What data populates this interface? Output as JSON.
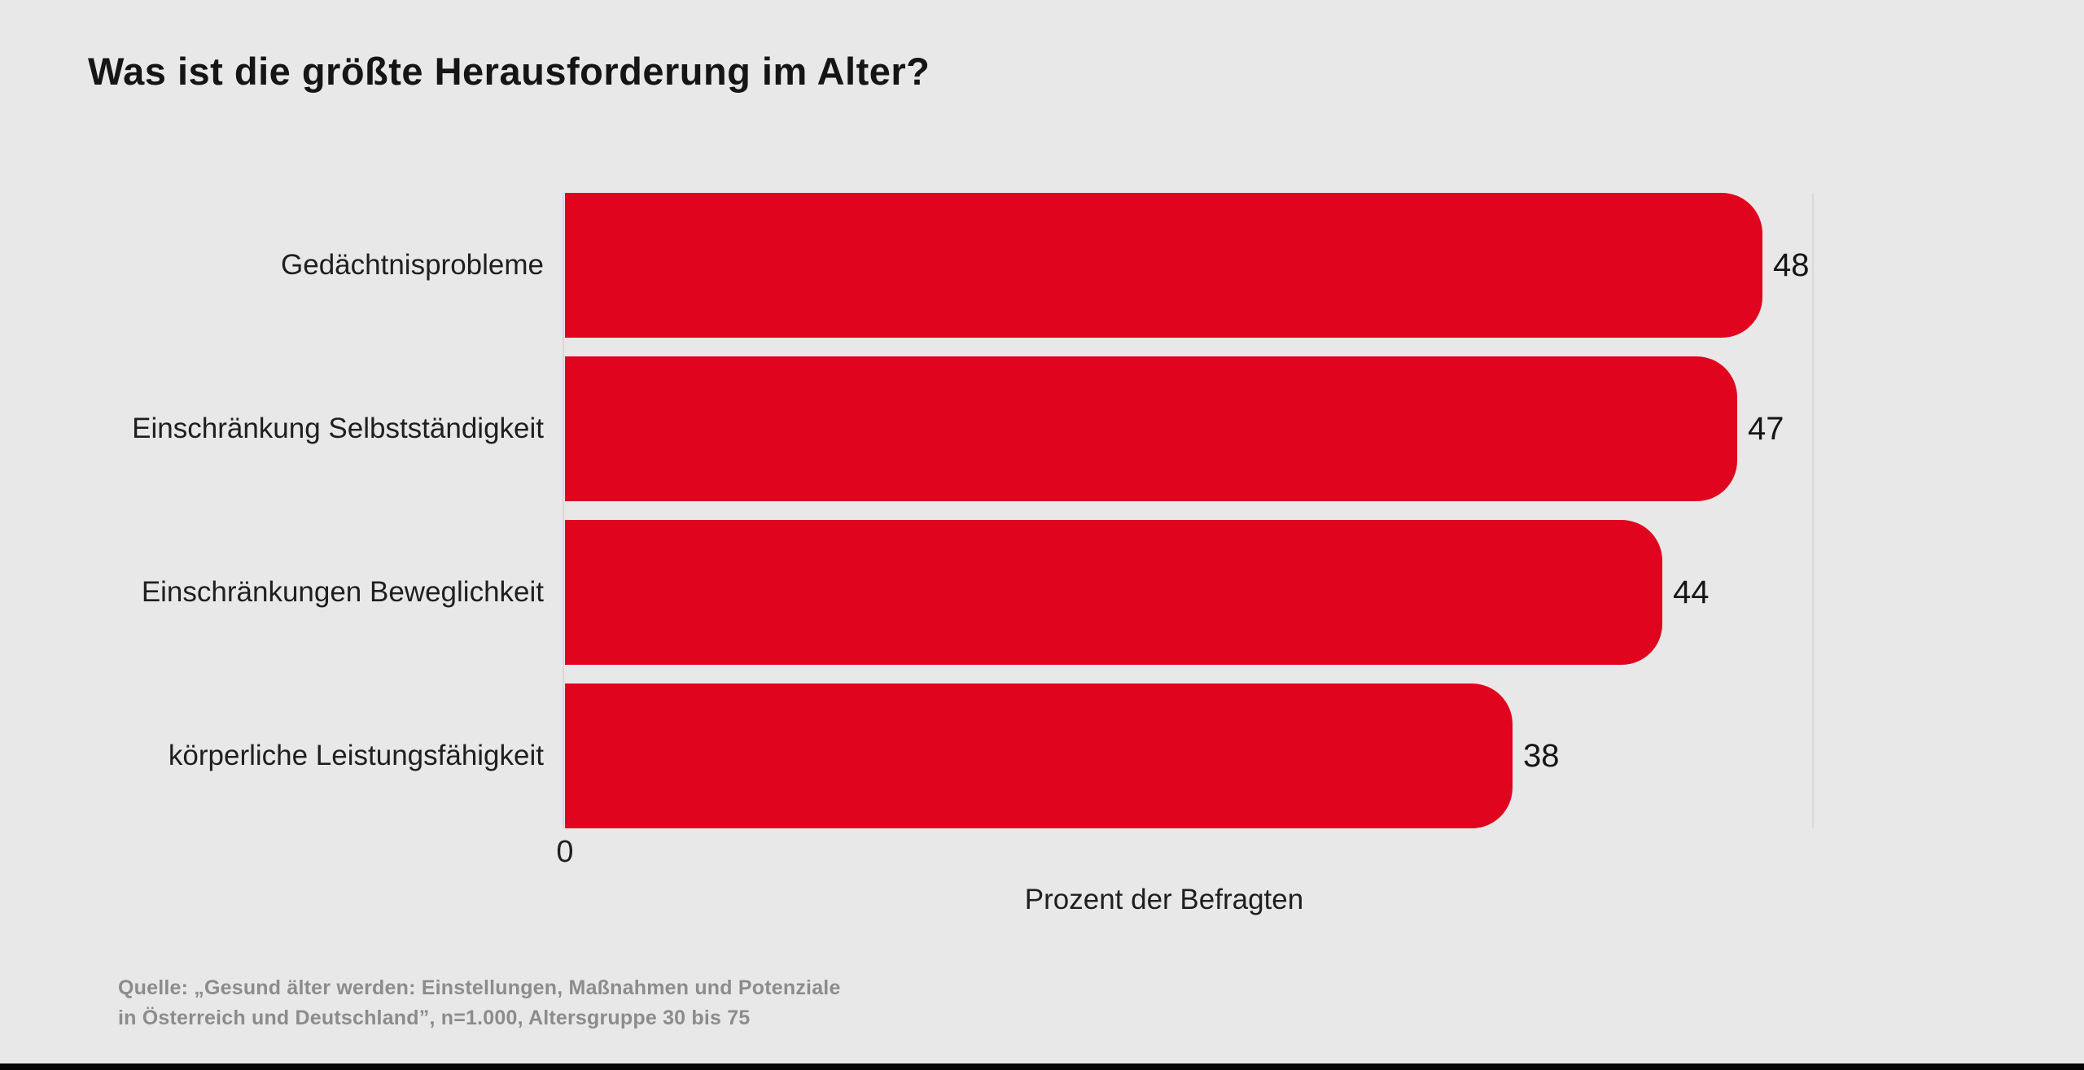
{
  "title": "Was ist die größte Herausforderung im Alter?",
  "chart_data": {
    "type": "bar",
    "orientation": "horizontal",
    "categories": [
      "Gedächtnisprobleme",
      "Einschränkung Selbstständigkeit",
      "Einschränkungen Beweglichkeit",
      "körperliche Leistungsfähigkeit"
    ],
    "values": [
      48,
      47,
      44,
      38
    ],
    "title": "Was ist die größte Herausforderung im Alter?",
    "xlabel": "Prozent der Befragten",
    "ylabel": "",
    "xlim": [
      0,
      50
    ],
    "x_tick_labels": [
      "0"
    ],
    "gridlines_at": [
      0,
      50
    ],
    "legend": "none",
    "bar_color": "#e0041e",
    "background_color": "#e8e8e8",
    "value_labels_shown": true
  },
  "source": {
    "line1": "Quelle: „Gesund älter werden: Einstellungen, Maßnahmen und Potenziale",
    "line2": "in Österreich und Deutschland”, n=1.000, Altersgruppe 30 bis 75"
  }
}
